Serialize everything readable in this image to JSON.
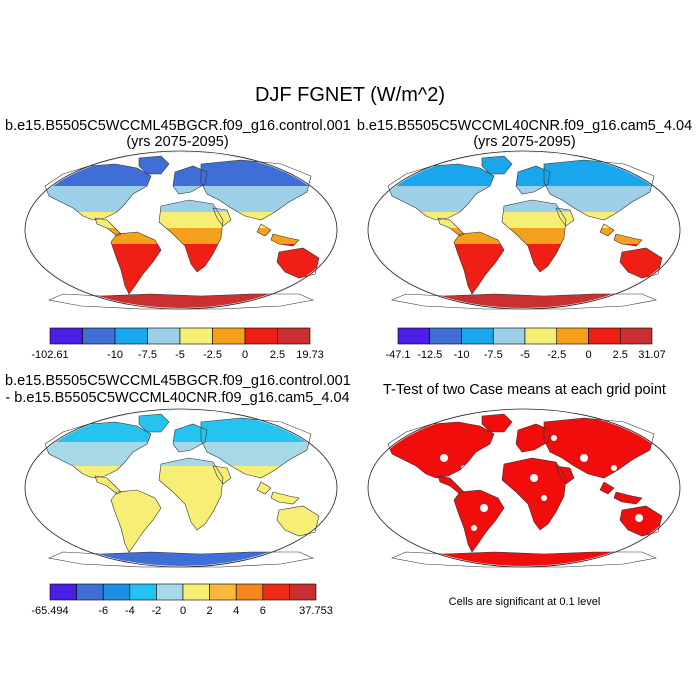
{
  "figure": {
    "title": "DJF FGNET (W/m^2)"
  },
  "panels": [
    {
      "title_line1": "b.e15.B5505C5WCCML45BGCR.f09_g16.control.001",
      "title_line2": "(yrs 2075-2095)",
      "colorbar": {
        "colors": [
          "#4b1ee6",
          "#3f6fd6",
          "#18a6ec",
          "#9ecfe8",
          "#f7ee76",
          "#f6a11c",
          "#ef1f16",
          "#cb2f2f"
        ],
        "labels": [
          "-102.61",
          "-10",
          "-7.5",
          "-5",
          "-2.5",
          "0",
          "2.5",
          "19.73"
        ],
        "label_positions": [
          0,
          2,
          3,
          4,
          5,
          6,
          7,
          8
        ]
      }
    },
    {
      "title_line1": "b.e15.B5505C5WCCML40CNR.f09_g16.cam5_4.04",
      "title_line2": "(yrs 2075-2095)",
      "colorbar": {
        "colors": [
          "#4b1ee6",
          "#3f6fd6",
          "#18a6ec",
          "#9ecfe8",
          "#f7ee76",
          "#f6a11c",
          "#ef1f16",
          "#cb2f2f"
        ],
        "labels": [
          "-47.1",
          "-12.5",
          "-10",
          "-7.5",
          "-5",
          "-2.5",
          "0",
          "2.5",
          "31.07"
        ],
        "label_positions": [
          0,
          1,
          2,
          3,
          4,
          5,
          6,
          7,
          8
        ]
      }
    },
    {
      "title_line1": "b.e15.B5505C5WCCML45BGCR.f09_g16.control.001",
      "title_line2": "- b.e15.B5505C5WCCML40CNR.f09_g16.cam5_4.04",
      "colorbar": {
        "colors": [
          "#4b1ee6",
          "#3f6fd6",
          "#1f8fe6",
          "#27c3f0",
          "#a6d8e8",
          "#f7ee76",
          "#f8b83a",
          "#f6861e",
          "#ef2a16",
          "#cb2f2f"
        ],
        "labels": [
          "-65.494",
          "-6",
          "-4",
          "-2",
          "0",
          "2",
          "4",
          "6",
          "37.753"
        ],
        "label_positions": [
          0,
          2,
          3,
          4,
          5,
          6,
          7,
          8,
          10
        ]
      }
    },
    {
      "title_line1": "T-Test of two Case means at each grid point",
      "note": "Cells are significant at 0.1 level"
    }
  ]
}
